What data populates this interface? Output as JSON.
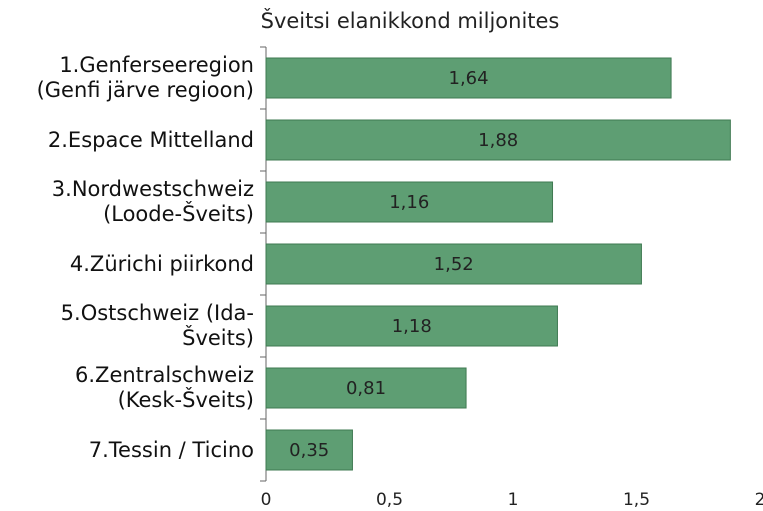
{
  "chart_data": {
    "type": "bar",
    "orientation": "horizontal",
    "title": "Šveitsi elanikkond miljonites",
    "categories": [
      "1.Genferseeregion (Genfi järve regioon)",
      "2.Espace Mittelland",
      "3.Nordwestschweiz (Loode-Šveits)",
      "4.Zürichi piirkond",
      "5.Ostschweiz (Ida-Šveits)",
      "6.Zentralschweiz (Kesk-Šveits)",
      "7.Tessin / Ticino"
    ],
    "values": [
      1.64,
      1.88,
      1.16,
      1.52,
      1.18,
      0.81,
      0.35
    ],
    "value_labels": [
      "1,64",
      "1,88",
      "1,16",
      "1,52",
      "1,18",
      "0,81",
      "0,35"
    ],
    "color": "#5e9e73",
    "xlim": [
      0,
      2
    ],
    "xticks": [
      0,
      {
        "value": 0.5,
        "label": "0,5"
      },
      1,
      {
        "value": 1.5,
        "label": "1,5"
      },
      2
    ]
  }
}
